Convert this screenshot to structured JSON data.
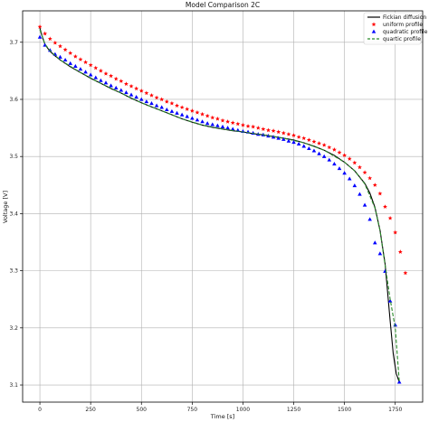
{
  "chart_data": {
    "type": "line",
    "title": "Model Comparison 2C",
    "xlabel": "Time [s]",
    "ylabel": "Voltage [V]",
    "xlim": [
      -85,
      1885
    ],
    "ylim": [
      3.07,
      3.755
    ],
    "xticks": [
      0,
      250,
      500,
      750,
      1000,
      1250,
      1500,
      1750
    ],
    "yticks": [
      3.1,
      3.2,
      3.3,
      3.4,
      3.5,
      3.6,
      3.7
    ],
    "grid": true,
    "legend_position": "top-right",
    "series": [
      {
        "name": "Fickian diffusion",
        "style": "solid-line",
        "color": "#000000",
        "x": [
          0,
          10,
          25,
          50,
          75,
          100,
          150,
          200,
          250,
          300,
          350,
          400,
          450,
          500,
          550,
          600,
          650,
          700,
          750,
          800,
          850,
          900,
          950,
          1000,
          1050,
          1100,
          1150,
          1200,
          1250,
          1300,
          1350,
          1400,
          1450,
          1500,
          1550,
          1600,
          1625,
          1650,
          1675,
          1700,
          1725,
          1740,
          1755,
          1770
        ],
        "y": [
          3.725,
          3.712,
          3.696,
          3.684,
          3.676,
          3.669,
          3.657,
          3.647,
          3.637,
          3.628,
          3.619,
          3.611,
          3.602,
          3.594,
          3.587,
          3.58,
          3.573,
          3.566,
          3.56,
          3.555,
          3.551,
          3.548,
          3.545,
          3.543,
          3.54,
          3.538,
          3.535,
          3.532,
          3.529,
          3.524,
          3.518,
          3.511,
          3.502,
          3.49,
          3.475,
          3.453,
          3.436,
          3.411,
          3.371,
          3.312,
          3.212,
          3.155,
          3.12,
          3.105
        ]
      },
      {
        "name": "uniform profile",
        "style": "red-star-markers",
        "color": "#ff0000",
        "x": [
          0,
          25,
          50,
          75,
          100,
          125,
          150,
          175,
          200,
          225,
          250,
          275,
          300,
          325,
          350,
          375,
          400,
          425,
          450,
          475,
          500,
          525,
          550,
          575,
          600,
          625,
          650,
          675,
          700,
          725,
          750,
          775,
          800,
          825,
          850,
          875,
          900,
          925,
          950,
          975,
          1000,
          1025,
          1050,
          1075,
          1100,
          1125,
          1150,
          1175,
          1200,
          1225,
          1250,
          1275,
          1300,
          1325,
          1350,
          1375,
          1400,
          1425,
          1450,
          1475,
          1500,
          1525,
          1550,
          1575,
          1600,
          1625,
          1650,
          1675,
          1700,
          1725,
          1750,
          1775,
          1800
        ],
        "y": [
          3.727,
          3.715,
          3.706,
          3.699,
          3.693,
          3.687,
          3.681,
          3.675,
          3.67,
          3.665,
          3.66,
          3.655,
          3.65,
          3.645,
          3.641,
          3.636,
          3.632,
          3.627,
          3.623,
          3.619,
          3.615,
          3.611,
          3.607,
          3.603,
          3.6,
          3.596,
          3.593,
          3.589,
          3.586,
          3.583,
          3.58,
          3.577,
          3.574,
          3.571,
          3.568,
          3.566,
          3.563,
          3.561,
          3.559,
          3.557,
          3.555,
          3.553,
          3.552,
          3.55,
          3.548,
          3.546,
          3.545,
          3.543,
          3.541,
          3.539,
          3.537,
          3.534,
          3.532,
          3.529,
          3.526,
          3.523,
          3.52,
          3.516,
          3.512,
          3.507,
          3.502,
          3.496,
          3.489,
          3.481,
          3.472,
          3.462,
          3.45,
          3.435,
          3.412,
          3.392,
          3.367,
          3.333,
          3.296
        ]
      },
      {
        "name": "quadratic profile",
        "style": "blue-triangle-markers",
        "color": "#0000ff",
        "x": [
          0,
          25,
          50,
          75,
          100,
          125,
          150,
          175,
          200,
          225,
          250,
          275,
          300,
          325,
          350,
          375,
          400,
          425,
          450,
          475,
          500,
          525,
          550,
          575,
          600,
          625,
          650,
          675,
          700,
          725,
          750,
          775,
          800,
          825,
          850,
          875,
          900,
          925,
          950,
          975,
          1000,
          1025,
          1050,
          1075,
          1100,
          1125,
          1150,
          1175,
          1200,
          1225,
          1250,
          1275,
          1300,
          1325,
          1350,
          1375,
          1400,
          1425,
          1450,
          1475,
          1500,
          1525,
          1550,
          1575,
          1600,
          1625,
          1650,
          1675,
          1700,
          1725,
          1750,
          1770
        ],
        "y": [
          3.709,
          3.695,
          3.686,
          3.679,
          3.674,
          3.669,
          3.663,
          3.658,
          3.653,
          3.648,
          3.643,
          3.638,
          3.633,
          3.629,
          3.624,
          3.62,
          3.616,
          3.612,
          3.608,
          3.604,
          3.6,
          3.596,
          3.593,
          3.589,
          3.586,
          3.582,
          3.579,
          3.576,
          3.573,
          3.57,
          3.567,
          3.564,
          3.561,
          3.558,
          3.556,
          3.554,
          3.552,
          3.55,
          3.548,
          3.546,
          3.544,
          3.543,
          3.541,
          3.539,
          3.538,
          3.536,
          3.534,
          3.532,
          3.53,
          3.527,
          3.525,
          3.522,
          3.518,
          3.514,
          3.51,
          3.505,
          3.5,
          3.494,
          3.487,
          3.479,
          3.471,
          3.461,
          3.449,
          3.434,
          3.415,
          3.39,
          3.349,
          3.33,
          3.299,
          3.247,
          3.205,
          3.105
        ]
      },
      {
        "name": "quartic profile",
        "style": "dashed-line",
        "color": "#2a8a2a",
        "x": [
          0,
          25,
          50,
          100,
          200,
          300,
          400,
          500,
          600,
          700,
          800,
          900,
          1000,
          1100,
          1200,
          1300,
          1400,
          1500,
          1550,
          1600,
          1650,
          1675,
          1700,
          1725,
          1750,
          1770
        ],
        "y": [
          3.722,
          3.697,
          3.685,
          3.669,
          3.647,
          3.628,
          3.611,
          3.594,
          3.58,
          3.566,
          3.555,
          3.548,
          3.543,
          3.538,
          3.532,
          3.524,
          3.511,
          3.49,
          3.475,
          3.452,
          3.41,
          3.37,
          3.31,
          3.25,
          3.2,
          3.105
        ]
      }
    ]
  }
}
